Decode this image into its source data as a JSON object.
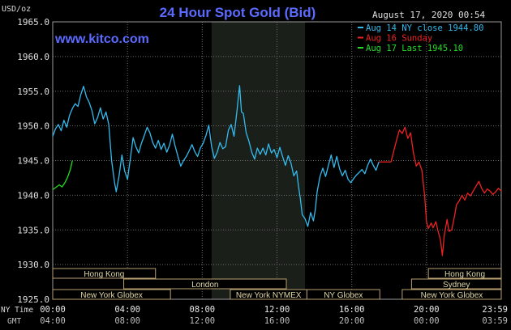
{
  "chart_data": {
    "type": "line",
    "title": "24 Hour Spot Gold (Bid)",
    "unit_label": "USD/oz",
    "watermark": "www.kitco.com",
    "datetime": "August 17, 2020 00:54",
    "ylim": [
      1925,
      1965
    ],
    "y_ticks": [
      "1965.0",
      "1960.0",
      "1955.0",
      "1950.0",
      "1945.0",
      "1940.0",
      "1935.0",
      "1930.0",
      "1925.0"
    ],
    "y_tick_values": [
      1965,
      1960,
      1955,
      1950,
      1945,
      1940,
      1935,
      1930,
      1925
    ],
    "xlim": [
      0,
      24
    ],
    "x_row1_label": "NY Time",
    "x_row2_label": "GMT",
    "x_ticks_ny": [
      "00:00",
      "04:00",
      "08:00",
      "12:00",
      "16:00",
      "20:00",
      "23:59"
    ],
    "x_ticks_gmt": [
      "04:00",
      "08:00",
      "12:00",
      "16:00",
      "20:00",
      "00:00",
      "03:59"
    ],
    "x_tick_hours": [
      0,
      4,
      8,
      12,
      16,
      20,
      24
    ],
    "shaded_region_hours": [
      8.5,
      13.5
    ],
    "legend": [
      {
        "text": "Aug 14 NY close 1944.80",
        "color": "#33bbee"
      },
      {
        "text": "Aug 16 Sunday",
        "color": "#ee2222"
      },
      {
        "text": "Aug 17 Last 1945.10",
        "color": "#22dd22"
      }
    ],
    "colors": {
      "blue": "#33bbee",
      "red": "#ee2222",
      "green": "#22dd22",
      "flat": "#ee2222",
      "grid": "#6e6e6e",
      "session_border": "#b8a070",
      "session_text": "#e0d8a8",
      "title": "#5b6bff",
      "watermark": "#5b6bff",
      "shade": "#1a1f1a"
    },
    "sessions": [
      {
        "label": "Hong Kong",
        "start": 0,
        "end": 5.5,
        "row": 0
      },
      {
        "label": "Hong Kong",
        "start": 20.1,
        "end": 24,
        "row": 0
      },
      {
        "label": "London",
        "start": 3.8,
        "end": 12.5,
        "row": 1
      },
      {
        "label": "Sydney",
        "start": 19.2,
        "end": 24,
        "row": 1
      },
      {
        "label": "New York Globex",
        "start": 0,
        "end": 6.3,
        "row": 2
      },
      {
        "label": "New York NYMEX",
        "start": 9.5,
        "end": 13.6,
        "row": 2
      },
      {
        "label": "NY Globex",
        "start": 13.6,
        "end": 17.5,
        "row": 2
      },
      {
        "label": "New York Globex",
        "start": 18.7,
        "end": 24,
        "row": 2
      }
    ],
    "series": [
      {
        "color_key": "blue",
        "points": [
          [
            0.0,
            1948.5
          ],
          [
            0.15,
            1949.6
          ],
          [
            0.3,
            1950.2
          ],
          [
            0.45,
            1949.3
          ],
          [
            0.6,
            1950.8
          ],
          [
            0.75,
            1949.8
          ],
          [
            0.9,
            1951.5
          ],
          [
            1.05,
            1952.5
          ],
          [
            1.2,
            1953.2
          ],
          [
            1.35,
            1952.8
          ],
          [
            1.5,
            1954.5
          ],
          [
            1.65,
            1955.7
          ],
          [
            1.8,
            1954.2
          ],
          [
            1.95,
            1953.4
          ],
          [
            2.1,
            1952.2
          ],
          [
            2.25,
            1950.3
          ],
          [
            2.4,
            1951.2
          ],
          [
            2.55,
            1952.6
          ],
          [
            2.7,
            1951.0
          ],
          [
            2.85,
            1952.0
          ],
          [
            3.0,
            1950.2
          ],
          [
            3.15,
            1945.0
          ],
          [
            3.3,
            1942.0
          ],
          [
            3.4,
            1940.5
          ],
          [
            3.55,
            1942.8
          ],
          [
            3.7,
            1945.8
          ],
          [
            3.85,
            1943.5
          ],
          [
            4.0,
            1942.3
          ],
          [
            4.15,
            1945.2
          ],
          [
            4.3,
            1948.3
          ],
          [
            4.45,
            1947.0
          ],
          [
            4.6,
            1946.1
          ],
          [
            4.75,
            1947.5
          ],
          [
            4.9,
            1948.6
          ],
          [
            5.05,
            1949.8
          ],
          [
            5.2,
            1949.0
          ],
          [
            5.35,
            1947.6
          ],
          [
            5.5,
            1946.8
          ],
          [
            5.65,
            1947.9
          ],
          [
            5.8,
            1946.6
          ],
          [
            5.95,
            1947.5
          ],
          [
            6.1,
            1946.2
          ],
          [
            6.25,
            1947.2
          ],
          [
            6.4,
            1948.8
          ],
          [
            6.55,
            1947.1
          ],
          [
            6.7,
            1945.6
          ],
          [
            6.85,
            1944.2
          ],
          [
            7.0,
            1945.0
          ],
          [
            7.15,
            1945.6
          ],
          [
            7.3,
            1946.4
          ],
          [
            7.45,
            1947.3
          ],
          [
            7.6,
            1946.3
          ],
          [
            7.75,
            1945.6
          ],
          [
            7.9,
            1946.8
          ],
          [
            8.05,
            1947.5
          ],
          [
            8.2,
            1948.6
          ],
          [
            8.35,
            1950.1
          ],
          [
            8.5,
            1947.0
          ],
          [
            8.65,
            1945.3
          ],
          [
            8.8,
            1946.2
          ],
          [
            8.95,
            1947.6
          ],
          [
            9.1,
            1946.7
          ],
          [
            9.25,
            1947.0
          ],
          [
            9.4,
            1949.4
          ],
          [
            9.55,
            1950.2
          ],
          [
            9.7,
            1948.5
          ],
          [
            9.85,
            1952.0
          ],
          [
            10.0,
            1955.8
          ],
          [
            10.1,
            1952.0
          ],
          [
            10.2,
            1951.8
          ],
          [
            10.35,
            1949.0
          ],
          [
            10.5,
            1947.8
          ],
          [
            10.65,
            1946.2
          ],
          [
            10.8,
            1945.2
          ],
          [
            10.95,
            1946.8
          ],
          [
            11.1,
            1945.9
          ],
          [
            11.25,
            1946.8
          ],
          [
            11.4,
            1945.8
          ],
          [
            11.55,
            1947.4
          ],
          [
            11.7,
            1946.1
          ],
          [
            11.85,
            1946.6
          ],
          [
            12.0,
            1945.4
          ],
          [
            12.15,
            1946.9
          ],
          [
            12.3,
            1945.6
          ],
          [
            12.45,
            1944.3
          ],
          [
            12.6,
            1945.7
          ],
          [
            12.75,
            1944.6
          ],
          [
            12.9,
            1942.8
          ],
          [
            13.05,
            1943.5
          ],
          [
            13.15,
            1941.3
          ],
          [
            13.25,
            1939.5
          ],
          [
            13.35,
            1937.2
          ],
          [
            13.5,
            1936.6
          ],
          [
            13.65,
            1935.5
          ],
          [
            13.8,
            1937.5
          ],
          [
            13.95,
            1936.3
          ],
          [
            14.05,
            1937.9
          ],
          [
            14.15,
            1940.5
          ],
          [
            14.3,
            1942.7
          ],
          [
            14.45,
            1943.9
          ],
          [
            14.6,
            1942.7
          ],
          [
            14.75,
            1944.3
          ],
          [
            14.9,
            1945.8
          ],
          [
            15.05,
            1944.0
          ],
          [
            15.2,
            1945.6
          ],
          [
            15.35,
            1943.8
          ],
          [
            15.5,
            1942.8
          ],
          [
            15.65,
            1943.6
          ],
          [
            15.8,
            1942.3
          ],
          [
            15.95,
            1941.8
          ],
          [
            16.1,
            1942.4
          ],
          [
            16.25,
            1942.9
          ],
          [
            16.4,
            1943.3
          ],
          [
            16.55,
            1943.7
          ],
          [
            16.7,
            1943.1
          ],
          [
            16.85,
            1944.3
          ],
          [
            17.0,
            1945.2
          ],
          [
            17.15,
            1944.3
          ],
          [
            17.3,
            1943.6
          ],
          [
            17.45,
            1944.8
          ]
        ]
      },
      {
        "color_key": "flat",
        "points": [
          [
            17.45,
            1944.8
          ],
          [
            18.1,
            1944.8
          ]
        ]
      },
      {
        "color_key": "red",
        "points": [
          [
            18.1,
            1944.8
          ],
          [
            18.25,
            1946.4
          ],
          [
            18.4,
            1948.0
          ],
          [
            18.55,
            1949.4
          ],
          [
            18.7,
            1948.9
          ],
          [
            18.85,
            1949.8
          ],
          [
            19.0,
            1948.2
          ],
          [
            19.15,
            1949.0
          ],
          [
            19.3,
            1946.1
          ],
          [
            19.45,
            1944.2
          ],
          [
            19.6,
            1944.8
          ],
          [
            19.75,
            1943.6
          ],
          [
            19.9,
            1940.0
          ],
          [
            20.0,
            1936.2
          ],
          [
            20.1,
            1935.2
          ],
          [
            20.25,
            1936.0
          ],
          [
            20.35,
            1935.3
          ],
          [
            20.5,
            1936.2
          ],
          [
            20.6,
            1935.0
          ],
          [
            20.75,
            1933.5
          ],
          [
            20.85,
            1931.3
          ],
          [
            20.95,
            1934.2
          ],
          [
            21.1,
            1936.5
          ],
          [
            21.2,
            1934.8
          ],
          [
            21.35,
            1935.0
          ],
          [
            21.5,
            1937.0
          ],
          [
            21.6,
            1938.6
          ],
          [
            21.75,
            1939.2
          ],
          [
            21.9,
            1940.0
          ],
          [
            22.05,
            1939.3
          ],
          [
            22.2,
            1940.3
          ],
          [
            22.35,
            1939.9
          ],
          [
            22.5,
            1940.6
          ],
          [
            22.65,
            1941.3
          ],
          [
            22.8,
            1942.0
          ],
          [
            22.95,
            1941.0
          ],
          [
            23.1,
            1940.3
          ],
          [
            23.25,
            1940.9
          ],
          [
            23.4,
            1940.6
          ],
          [
            23.55,
            1940.1
          ],
          [
            23.7,
            1940.5
          ],
          [
            23.85,
            1941.0
          ],
          [
            24.0,
            1940.6
          ]
        ]
      },
      {
        "color_key": "green",
        "points": [
          [
            0.0,
            1940.8
          ],
          [
            0.2,
            1941.2
          ],
          [
            0.35,
            1941.5
          ],
          [
            0.5,
            1941.2
          ],
          [
            0.65,
            1941.8
          ],
          [
            0.8,
            1942.6
          ],
          [
            0.95,
            1943.8
          ],
          [
            1.05,
            1945.0
          ]
        ]
      }
    ]
  }
}
